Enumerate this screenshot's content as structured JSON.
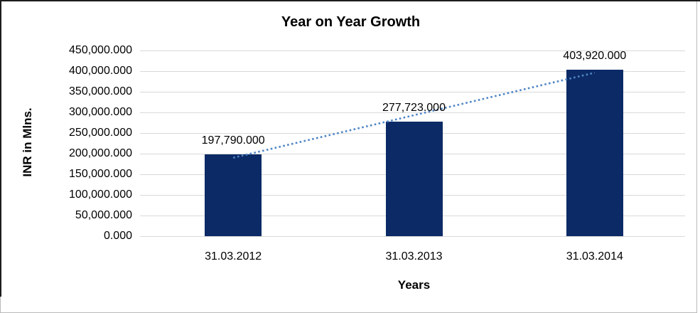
{
  "chart_data": {
    "type": "bar",
    "title": "Year on Year Growth",
    "xlabel": "Years",
    "ylabel": "INR in Mlns.",
    "categories": [
      "31.03.2012",
      "31.03.2013",
      "31.03.2014"
    ],
    "values": [
      197790.0,
      277723.0,
      403920.0
    ],
    "data_labels": [
      "197,790.000",
      "277,723.000",
      "403,920.000"
    ],
    "y_tick_labels": [
      "450,000.000",
      "400,000.000",
      "350,000.000",
      "300,000.000",
      "250,000.000",
      "200,000.000",
      "150,000.000",
      "100,000.000",
      "50,000.000",
      "0.000"
    ],
    "ylim": [
      0,
      450000
    ],
    "y_tick_step": 50000,
    "grid": true,
    "legend": "none",
    "bar_color": "#0b2a66",
    "gridline_color": "#d9d9d9",
    "trendline": {
      "type": "linear",
      "style": "dotted",
      "color": "#4f86c6"
    }
  }
}
